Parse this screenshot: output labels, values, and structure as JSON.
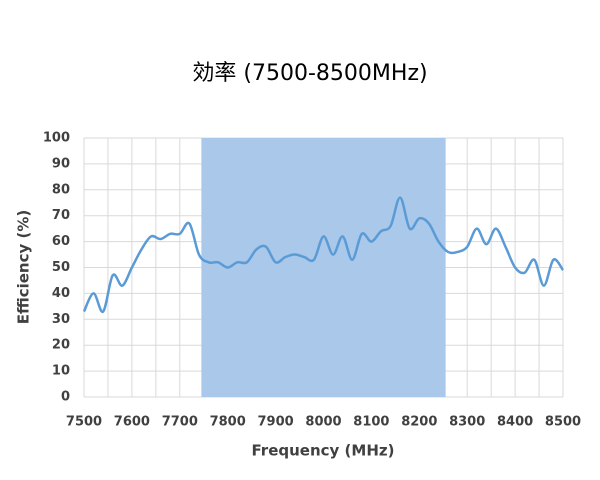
{
  "chart_data": {
    "type": "line",
    "title": "効率 (7500-8500MHz)",
    "x_label": "Frequency (MHz)",
    "y_label": "Efficiency (%)",
    "x": [
      7500,
      7520,
      7540,
      7560,
      7580,
      7600,
      7620,
      7640,
      7660,
      7680,
      7700,
      7720,
      7740,
      7760,
      7780,
      7800,
      7820,
      7840,
      7860,
      7880,
      7900,
      7920,
      7940,
      7960,
      7980,
      8000,
      8020,
      8040,
      8060,
      8080,
      8100,
      8120,
      8140,
      8160,
      8180,
      8200,
      8220,
      8240,
      8260,
      8280,
      8300,
      8320,
      8340,
      8360,
      8380,
      8400,
      8420,
      8440,
      8460,
      8480,
      8500
    ],
    "series": [
      {
        "name": "Efficiency",
        "color": "#5b9bd5",
        "values": [
          33,
          40,
          33,
          47,
          43,
          50,
          57,
          62,
          61,
          63,
          63,
          67,
          55,
          52,
          52,
          50,
          52,
          52,
          57,
          58,
          52,
          54,
          55,
          54,
          53,
          62,
          55,
          62,
          53,
          63,
          60,
          64,
          66,
          77,
          65,
          69,
          67,
          60,
          56,
          56,
          58,
          65,
          59,
          65,
          58,
          50,
          48,
          53,
          43,
          53,
          49
        ]
      }
    ],
    "xlim": [
      7500,
      8500
    ],
    "xticks": [
      7500,
      7600,
      7700,
      7800,
      7900,
      8000,
      8100,
      8200,
      8300,
      8400,
      8500
    ],
    "x_minor_grid": [
      7550,
      7650,
      7750,
      7850,
      7950,
      8050,
      8150,
      8250,
      8350,
      8450
    ],
    "ylim": [
      0,
      100
    ],
    "yticks": [
      0,
      10,
      20,
      30,
      40,
      50,
      60,
      70,
      80,
      90,
      100
    ],
    "grid": true,
    "highlight": {
      "x_range": [
        7745,
        8255
      ],
      "color": "#a9c8ea"
    }
  }
}
